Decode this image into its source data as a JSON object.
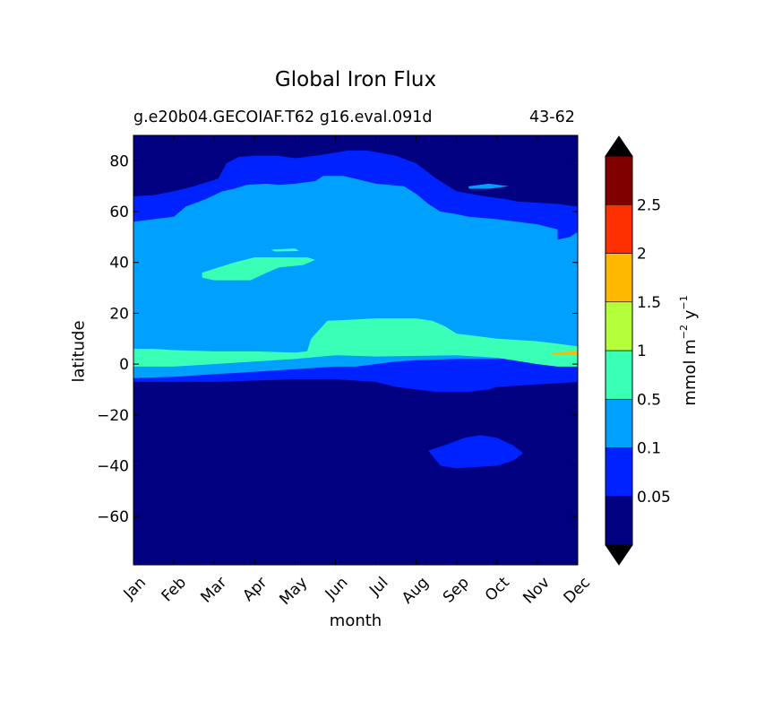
{
  "chart_data": {
    "type": "heatmap",
    "plot_kind": "filled contour",
    "title": "Global Iron Flux",
    "subtitle_left": "g.e20b04.GECOIAF.T62 g16.eval.091d",
    "subtitle_right": "43-62",
    "xlabel": "month",
    "ylabel": "latitude",
    "x_categories": [
      "Jan",
      "Feb",
      "Mar",
      "Apr",
      "May",
      "Jun",
      "Jul",
      "Aug",
      "Sep",
      "Oct",
      "Nov",
      "Dec"
    ],
    "xlim": [
      1,
      12
    ],
    "y_ticks": [
      80,
      60,
      40,
      20,
      0,
      -20,
      -40,
      -60
    ],
    "y_tick_labels": [
      "80",
      "60",
      "40",
      "20",
      "0",
      "−20",
      "−40",
      "−60"
    ],
    "ylim": [
      -79,
      90
    ],
    "colorbar": {
      "label": "mmol m⁻² y⁻¹",
      "label_parts": [
        "mmol m",
        "−2",
        " y",
        "−1"
      ],
      "extend": "both",
      "levels": [
        0.05,
        0.1,
        0.5,
        1,
        1.5,
        2,
        2.5
      ],
      "level_labels": [
        "0.05",
        "0.1",
        "0.5",
        "1",
        "1.5",
        "2",
        "2.5"
      ],
      "colors": [
        "#000080",
        "#0022ff",
        "#00a0ff",
        "#3affb6",
        "#b4ff3a",
        "#ffb800",
        "#ff3000",
        "#800000"
      ],
      "under_color": "#000000",
      "over_color": "#000000"
    },
    "regions": [
      {
        "name": "background",
        "level_index": 0,
        "value_range": "<0.05",
        "points": [
          [
            1,
            -79
          ],
          [
            12,
            -79
          ],
          [
            12,
            90
          ],
          [
            1,
            90
          ]
        ]
      },
      {
        "name": "main-0.05-band",
        "level_index": 1,
        "value_range": "0.05-0.1",
        "points": [
          [
            1,
            -7
          ],
          [
            2,
            -7
          ],
          [
            3,
            -7
          ],
          [
            4,
            -6.5
          ],
          [
            5,
            -6
          ],
          [
            6,
            -6
          ],
          [
            7,
            -7
          ],
          [
            7.5,
            -9
          ],
          [
            8,
            -10
          ],
          [
            8.5,
            -11
          ],
          [
            9.3,
            -11
          ],
          [
            9.8,
            -10
          ],
          [
            10,
            -9
          ],
          [
            11,
            -8
          ],
          [
            12,
            -7
          ],
          [
            12,
            62
          ],
          [
            11.5,
            63
          ],
          [
            11,
            63.5
          ],
          [
            10.5,
            64
          ],
          [
            10.2,
            65
          ],
          [
            9.7,
            66
          ],
          [
            9,
            68
          ],
          [
            8.5,
            73
          ],
          [
            8,
            79
          ],
          [
            7.5,
            82
          ],
          [
            6.8,
            84
          ],
          [
            6.3,
            84
          ],
          [
            5.5,
            82
          ],
          [
            5,
            81
          ],
          [
            4.6,
            82
          ],
          [
            4,
            82
          ],
          [
            3.6,
            81.5
          ],
          [
            3.3,
            79
          ],
          [
            3.1,
            73
          ],
          [
            2.5,
            70
          ],
          [
            2,
            68
          ],
          [
            1.5,
            66.5
          ],
          [
            1,
            66
          ]
        ]
      },
      {
        "name": "southern-0.05-patch",
        "level_index": 1,
        "value_range": "0.05-0.1",
        "points": [
          [
            8.3,
            -34
          ],
          [
            8.7,
            -32
          ],
          [
            9.2,
            -29
          ],
          [
            9.6,
            -28
          ],
          [
            10,
            -29
          ],
          [
            10.4,
            -32
          ],
          [
            10.65,
            -35
          ],
          [
            10.4,
            -38
          ],
          [
            10,
            -40
          ],
          [
            9,
            -41
          ],
          [
            8.6,
            -40
          ],
          [
            8.45,
            -37
          ]
        ]
      },
      {
        "name": "main-0.1-band",
        "level_index": 2,
        "value_range": "0.1-0.5",
        "points": [
          [
            1,
            -5.5
          ],
          [
            2,
            -5
          ],
          [
            3,
            -4
          ],
          [
            4,
            -3
          ],
          [
            5,
            -2
          ],
          [
            6,
            -1
          ],
          [
            6.5,
            -1
          ],
          [
            7,
            0
          ],
          [
            7.5,
            1
          ],
          [
            8,
            1.5
          ],
          [
            9,
            2
          ],
          [
            10,
            2
          ],
          [
            10.5,
            2.5
          ],
          [
            11,
            3
          ],
          [
            11.5,
            3
          ],
          [
            12,
            3
          ],
          [
            12,
            52
          ],
          [
            11.8,
            50
          ],
          [
            11.5,
            49
          ],
          [
            11.5,
            53
          ],
          [
            11,
            55
          ],
          [
            10,
            57
          ],
          [
            9.3,
            58
          ],
          [
            9,
            59
          ],
          [
            8.6,
            60
          ],
          [
            8.3,
            63
          ],
          [
            8,
            67
          ],
          [
            7.7,
            70
          ],
          [
            7,
            71
          ],
          [
            6.2,
            74
          ],
          [
            5.7,
            74
          ],
          [
            5.5,
            72
          ],
          [
            5,
            71
          ],
          [
            4.6,
            70.5
          ],
          [
            4.3,
            71
          ],
          [
            3.8,
            70.5
          ],
          [
            3.5,
            69
          ],
          [
            3.2,
            68
          ],
          [
            2.8,
            65
          ],
          [
            2.3,
            62
          ],
          [
            2,
            58
          ],
          [
            1.5,
            57
          ],
          [
            1,
            56
          ]
        ]
      },
      {
        "name": "north-0.1-patch",
        "level_index": 2,
        "value_range": "0.1-0.5",
        "points": [
          [
            9.3,
            70
          ],
          [
            9.8,
            71
          ],
          [
            10.3,
            70
          ],
          [
            9.8,
            69
          ],
          [
            9.3,
            69
          ]
        ]
      },
      {
        "name": "left-edge-0.1-patch",
        "level_index": 2,
        "value_range": "0.1-0.5",
        "points": [
          [
            1,
            48
          ],
          [
            1.5,
            49
          ],
          [
            1.7,
            50.5
          ],
          [
            1.3,
            51.5
          ],
          [
            1,
            51
          ]
        ]
      },
      {
        "name": "tropical-0.5-band",
        "level_index": 3,
        "value_range": "0.5-1",
        "points": [
          [
            1,
            6
          ],
          [
            1.5,
            6
          ],
          [
            2,
            5.5
          ],
          [
            3,
            5
          ],
          [
            4,
            5
          ],
          [
            5,
            4.5
          ],
          [
            5.3,
            5
          ],
          [
            5.4,
            10
          ],
          [
            5.8,
            17
          ],
          [
            7,
            18
          ],
          [
            8,
            18
          ],
          [
            8.4,
            17
          ],
          [
            8.7,
            15
          ],
          [
            9,
            12
          ],
          [
            9.5,
            11
          ],
          [
            10,
            10
          ],
          [
            11,
            9
          ],
          [
            11.5,
            8
          ],
          [
            12,
            7
          ],
          [
            12,
            -1
          ],
          [
            11.5,
            -1
          ],
          [
            11,
            0
          ],
          [
            10.6,
            1
          ],
          [
            10,
            2.5
          ],
          [
            9.5,
            3
          ],
          [
            9,
            3.5
          ],
          [
            7,
            3
          ],
          [
            6,
            3.5
          ],
          [
            5,
            2
          ],
          [
            4,
            1
          ],
          [
            3,
            0
          ],
          [
            2,
            -1
          ],
          [
            1,
            -1
          ]
        ]
      },
      {
        "name": "mid-lat-0.5-patch",
        "level_index": 3,
        "value_range": "0.5-1",
        "points": [
          [
            2.7,
            36
          ],
          [
            3.1,
            38
          ],
          [
            3.5,
            40
          ],
          [
            4,
            42
          ],
          [
            4.7,
            42
          ],
          [
            5.3,
            42
          ],
          [
            5.5,
            41
          ],
          [
            5.2,
            39
          ],
          [
            4.6,
            38
          ],
          [
            4.3,
            36
          ],
          [
            3.9,
            33
          ],
          [
            3.6,
            33
          ],
          [
            3,
            33
          ],
          [
            2.7,
            34
          ]
        ]
      },
      {
        "name": "mid-lat-0.5-sliver",
        "level_index": 3,
        "value_range": "0.5-1",
        "points": [
          [
            4.4,
            45
          ],
          [
            5.0,
            45.5
          ],
          [
            5.1,
            44.5
          ],
          [
            4.5,
            44.3
          ]
        ]
      },
      {
        "name": "tropical-1.5-sliver",
        "level_index": 5,
        "value_range": "1.5-2",
        "points": [
          [
            11.3,
            4.5
          ],
          [
            12,
            5
          ],
          [
            12,
            3.5
          ],
          [
            11.4,
            3.8
          ]
        ]
      }
    ]
  }
}
